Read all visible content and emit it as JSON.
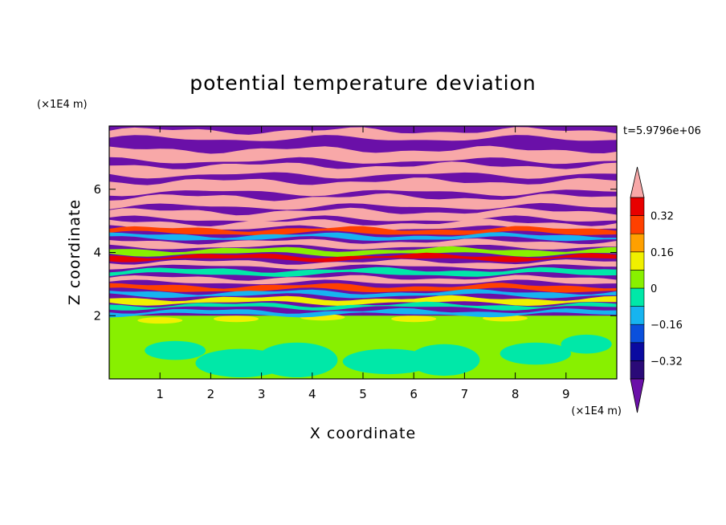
{
  "chart_data": {
    "type": "heatmap",
    "title": "potential temperature deviation",
    "xlabel": "X coordinate",
    "ylabel": "Z coordinate",
    "x_unit": "(×1E4 m)",
    "y_unit": "(×1E4 m)",
    "time_label": "t=5.9796e+06",
    "xlim": [
      0,
      10
    ],
    "ylim": [
      0,
      8
    ],
    "x_ticks": [
      1,
      2,
      3,
      4,
      5,
      6,
      7,
      8,
      9
    ],
    "y_ticks": [
      2,
      4,
      6
    ],
    "colorbar": {
      "levels": [
        -0.4,
        -0.32,
        -0.24,
        -0.16,
        -0.08,
        0,
        0.08,
        0.16,
        0.24,
        0.32,
        0.4
      ],
      "colors": [
        "#2a0a78",
        "#0a0aa0",
        "#0a50dc",
        "#16b4f0",
        "#00e8a8",
        "#88f000",
        "#f0f000",
        "#ffa000",
        "#ff4000",
        "#e80000"
      ],
      "under_color": "#6a10a8",
      "over_color": "#f8a8a8",
      "tick_labels": [
        "0.32",
        "0.16",
        "0",
        "−0.16",
        "−0.32"
      ]
    }
  }
}
